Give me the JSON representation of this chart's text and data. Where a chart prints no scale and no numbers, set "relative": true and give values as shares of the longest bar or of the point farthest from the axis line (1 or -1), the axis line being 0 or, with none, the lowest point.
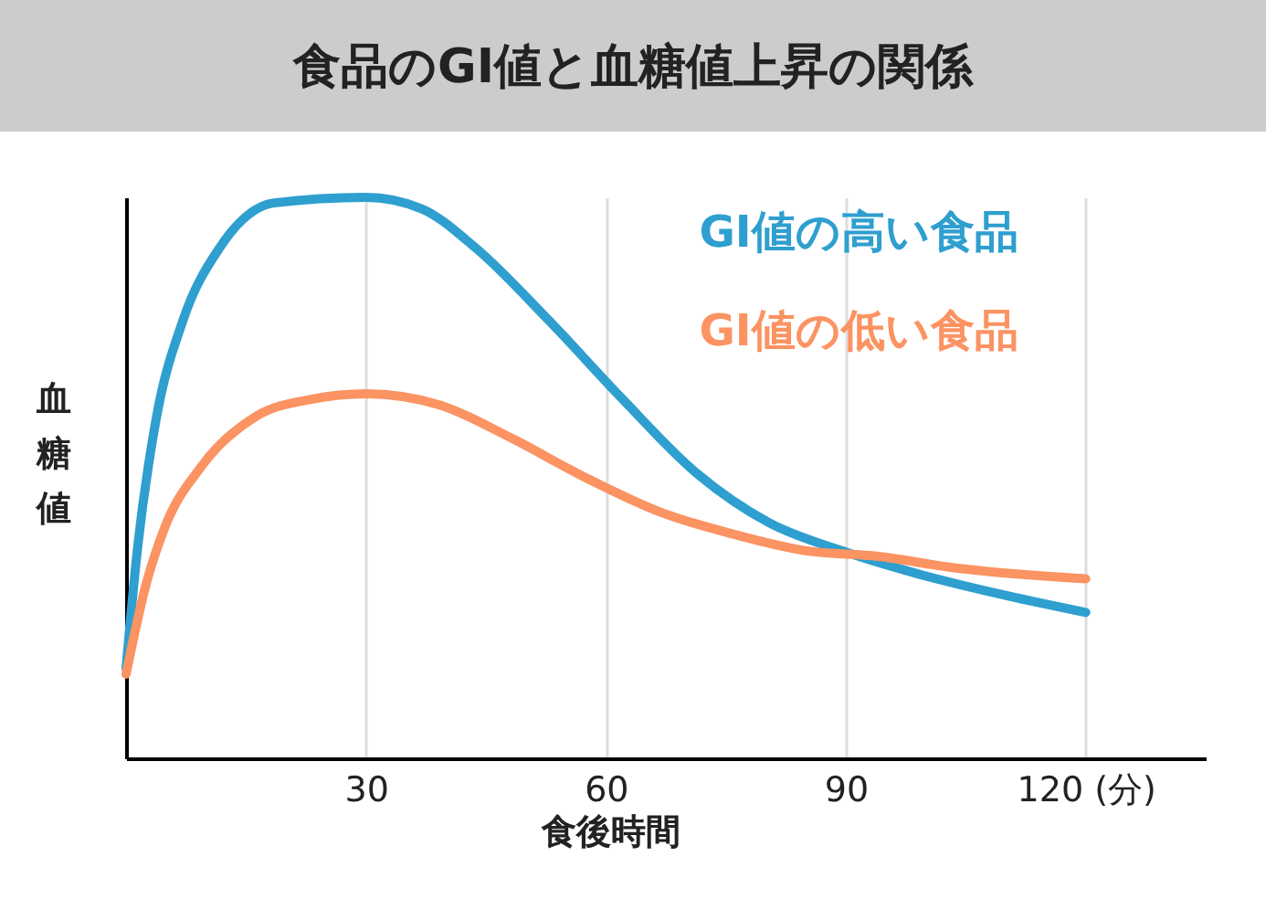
{
  "chart_data": {
    "type": "line",
    "title": "食品のGI値と血糖値上昇の関係",
    "xlabel": "食後時間",
    "ylabel": "血糖値",
    "relative": true,
    "grid": "x",
    "legend": false,
    "x": [
      0,
      1.4,
      3.7,
      7.1,
      11.7,
      18.5,
      30,
      36.9,
      43.7,
      52.9,
      62.1,
      71.2,
      80.4,
      89.5,
      98.7,
      110.1,
      120
    ],
    "xlim": [
      0,
      135
    ],
    "xticks": [
      30,
      60,
      90,
      {
        "value": 120,
        "label": "120 (分)"
      }
    ],
    "series": [
      {
        "name": "GI値の高い食品",
        "color": "#2e9fcf",
        "values": [
          0.16,
          0.37,
          0.6,
          0.78,
          0.91,
          0.99,
          1,
          0.98,
          0.91,
          0.78,
          0.64,
          0.51,
          0.42,
          0.37,
          0.33,
          0.29,
          0.26
        ]
      },
      {
        "name": "GI値の低い食品",
        "color": "#fb9362",
        "x": [
          0,
          2.5,
          4.8,
          9.4,
          16.3,
          23.1,
          30,
          39.2,
          48.3,
          57.5,
          66.6,
          75.8,
          85,
          94.1,
          103.3,
          120
        ],
        "values": [
          0.15,
          0.31,
          0.41,
          0.52,
          0.61,
          0.64,
          0.65,
          0.63,
          0.57,
          0.5,
          0.44,
          0.4,
          0.37,
          0.36,
          0.34,
          0.32
        ]
      }
    ]
  }
}
